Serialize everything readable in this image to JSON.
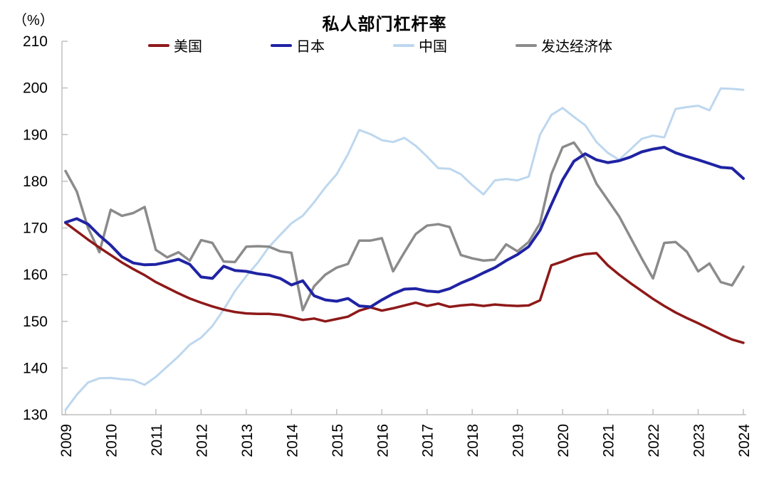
{
  "title": "私人部门杠杆率",
  "unit_label": "（%）",
  "legend": [
    {
      "id": "us",
      "label": "美国",
      "color": "#8e1919"
    },
    {
      "id": "japan",
      "label": "日本",
      "color": "#1f23a3"
    },
    {
      "id": "china",
      "label": "中国",
      "color": "#bdd7ee"
    },
    {
      "id": "developed-economies",
      "label": "发达经济体",
      "color": "#8b8b8b"
    }
  ],
  "chart_data": {
    "type": "line",
    "title": "私人部门杠杆率",
    "ylabel": "（%）",
    "xlabel": "",
    "ylim": [
      130,
      210
    ],
    "ytick_interval": 10,
    "grid": false,
    "legend_position": "top",
    "axis_color": "#bfbfbf",
    "text_color": "#000000",
    "x_frequency": "quarterly",
    "x_start": "2009Q1",
    "x_end": "2024Q1",
    "xtick_labels": [
      "2009",
      "2010",
      "2011",
      "2012",
      "2013",
      "2014",
      "2015",
      "2016",
      "2017",
      "2018",
      "2019",
      "2020",
      "2021",
      "2022",
      "2023",
      "2024"
    ],
    "series": [
      {
        "id": "us",
        "name": "美国",
        "color": "#8e1919",
        "values": [
          171.1,
          169.3,
          167.5,
          165.8,
          164.2,
          162.6,
          161.2,
          159.9,
          158.4,
          157.2,
          156.0,
          154.9,
          154.0,
          153.2,
          152.5,
          152.0,
          151.7,
          151.6,
          151.6,
          151.4,
          150.9,
          150.3,
          150.6,
          150.0,
          150.5,
          151.0,
          152.3,
          153.0,
          152.3,
          152.8,
          153.4,
          154.0,
          153.3,
          153.8,
          153.1,
          153.4,
          153.6,
          153.3,
          153.6,
          153.4,
          153.3,
          153.4,
          154.5,
          162.0,
          162.8,
          163.8,
          164.4,
          164.6,
          162.0,
          160.0,
          158.2,
          156.5,
          154.8,
          153.3,
          151.9,
          150.7,
          149.6,
          148.4,
          147.2,
          146.1,
          145.4
        ]
      },
      {
        "id": "japan",
        "name": "日本",
        "color": "#1f23a3",
        "values": [
          171.2,
          172.0,
          170.8,
          168.4,
          166.3,
          163.8,
          162.5,
          162.1,
          162.2,
          162.7,
          163.3,
          162.2,
          159.5,
          159.2,
          161.8,
          160.9,
          160.7,
          160.2,
          159.9,
          159.2,
          157.8,
          158.7,
          155.5,
          154.6,
          154.3,
          154.9,
          153.3,
          153.1,
          154.6,
          155.9,
          156.9,
          157.0,
          156.5,
          156.3,
          157.0,
          158.2,
          159.2,
          160.4,
          161.5,
          163.0,
          164.3,
          166.0,
          169.5,
          175.0,
          180.3,
          184.3,
          185.9,
          184.6,
          184.0,
          184.4,
          185.2,
          186.3,
          186.9,
          187.3,
          186.1,
          185.3,
          184.6,
          183.8,
          183.0,
          182.8,
          180.6
        ]
      },
      {
        "id": "china",
        "name": "中国",
        "color": "#bdd7ee",
        "values": [
          131.0,
          134.3,
          136.9,
          137.8,
          137.9,
          137.6,
          137.4,
          136.4,
          138.1,
          140.3,
          142.5,
          145.0,
          146.5,
          149.0,
          152.5,
          156.5,
          159.7,
          162.5,
          165.9,
          168.5,
          171.0,
          172.6,
          175.5,
          178.7,
          181.5,
          185.8,
          191.0,
          190.1,
          188.8,
          188.4,
          189.3,
          187.6,
          185.3,
          182.8,
          182.7,
          181.5,
          179.2,
          177.2,
          180.2,
          180.5,
          180.2,
          181.0,
          190.0,
          194.2,
          195.7,
          193.8,
          192.0,
          188.4,
          186.1,
          184.6,
          186.8,
          189.1,
          189.8,
          189.4,
          195.5,
          195.9,
          196.2,
          195.2,
          199.9,
          199.8,
          199.6
        ]
      },
      {
        "id": "developed-economies",
        "name": "发达经济体",
        "color": "#8b8b8b",
        "values": [
          182.2,
          177.8,
          170.0,
          164.8,
          173.9,
          172.6,
          173.2,
          174.5,
          165.3,
          163.7,
          164.8,
          163.0,
          167.4,
          166.8,
          162.8,
          162.7,
          166.0,
          166.1,
          166.0,
          165.0,
          164.7,
          152.4,
          157.5,
          160.0,
          161.5,
          162.3,
          167.3,
          167.3,
          167.8,
          160.7,
          164.8,
          168.7,
          170.5,
          170.8,
          170.2,
          164.2,
          163.5,
          163.0,
          163.2,
          166.5,
          165.0,
          167.0,
          171.0,
          181.5,
          187.3,
          188.3,
          184.9,
          179.5,
          176.0,
          172.5,
          168.0,
          163.5,
          159.2,
          166.8,
          167.0,
          164.9,
          160.7,
          162.4,
          158.4,
          157.7,
          161.7
        ]
      }
    ]
  }
}
